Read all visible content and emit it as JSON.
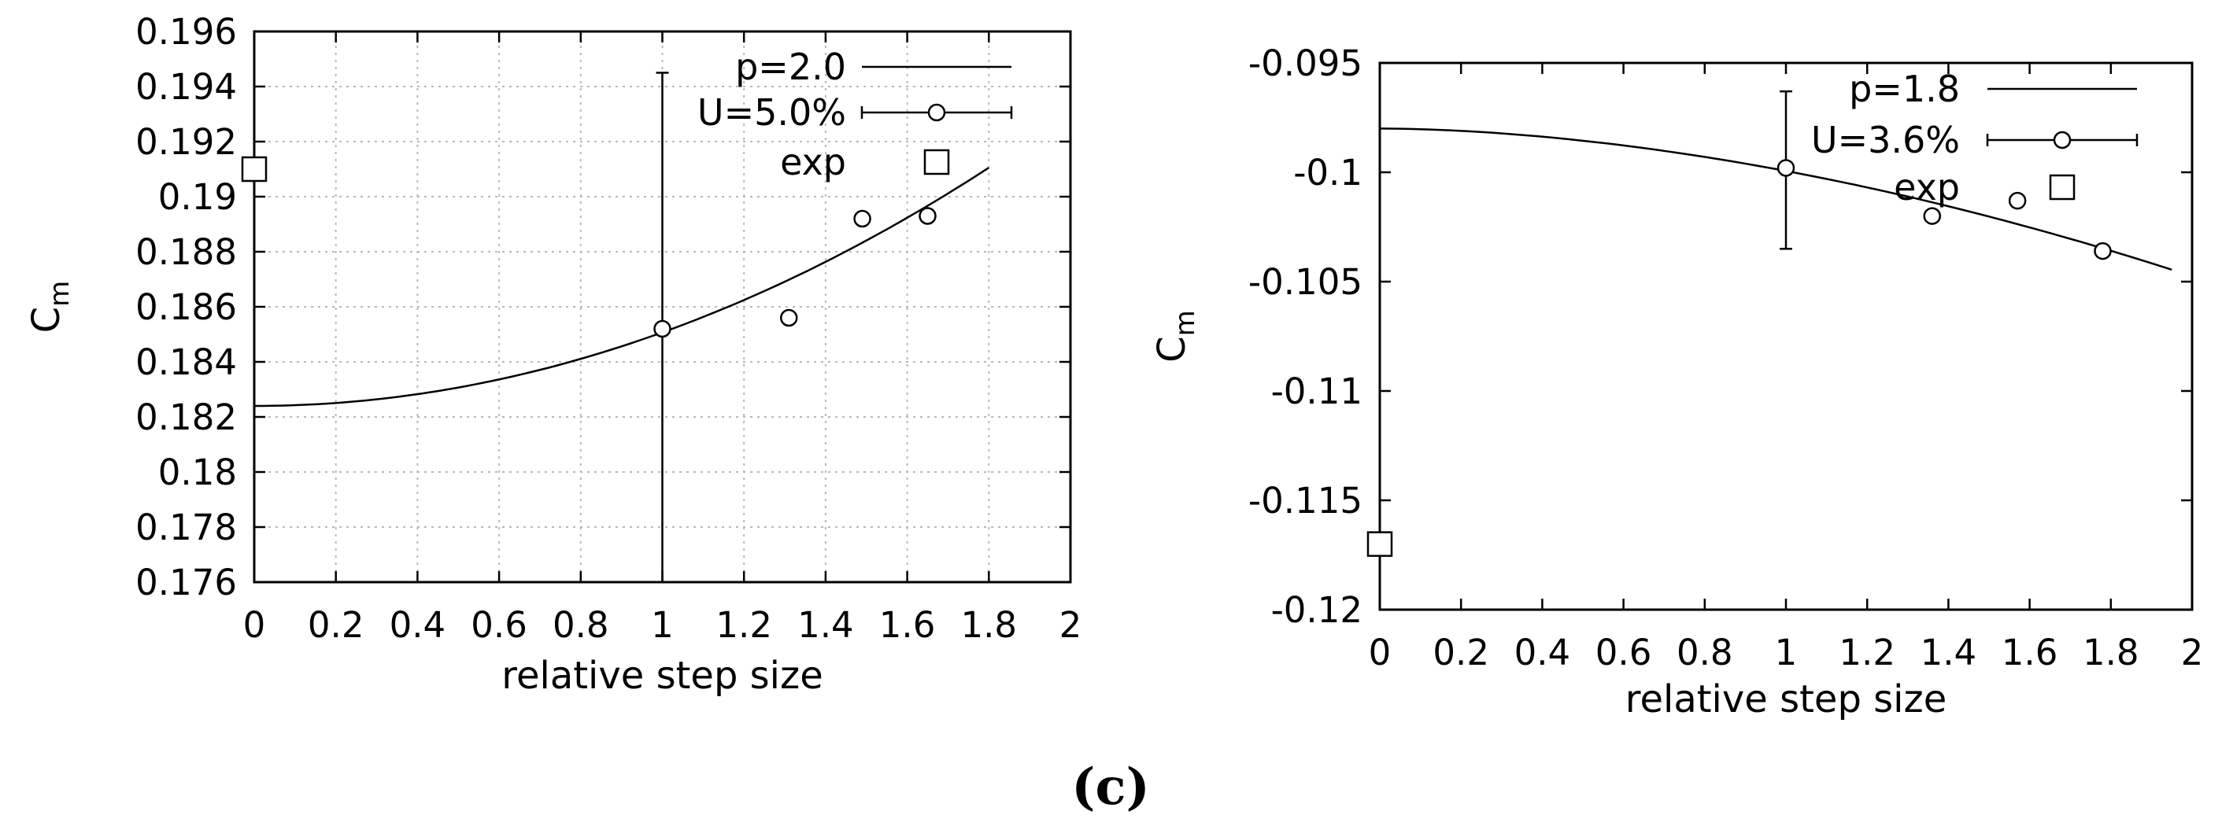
{
  "figure_label": "(c)",
  "chart_data": [
    {
      "type": "line",
      "xlabel": "relative step size",
      "ylabel": "C",
      "ylabel_sub": "m",
      "xlim": [
        0,
        2
      ],
      "ylim": [
        0.176,
        0.196
      ],
      "xticks": [
        0,
        0.2,
        0.4,
        0.6,
        0.8,
        1,
        1.2,
        1.4,
        1.6,
        1.8,
        2
      ],
      "xtick_labels": [
        "0",
        "0.2",
        "0.4",
        "0.6",
        "0.8",
        "1",
        "1.2",
        "1.4",
        "1.6",
        "1.8",
        "2"
      ],
      "yticks": [
        0.176,
        0.178,
        0.18,
        0.182,
        0.184,
        0.186,
        0.188,
        0.19,
        0.192,
        0.194,
        0.196
      ],
      "ytick_labels": [
        "0.176",
        "0.178",
        "0.18",
        "0.182",
        "0.184",
        "0.186",
        "0.188",
        "0.19",
        "0.192",
        "0.194",
        "0.196"
      ],
      "grid": true,
      "legend_position": "top-right",
      "legend": [
        "p=2.0",
        "U=5.0%",
        "exp"
      ],
      "series": [
        {
          "name": "p=2.0",
          "kind": "fit",
          "x_range": [
            0,
            1.8
          ],
          "c0": 0.1824,
          "c1": 0,
          "c2": 0.00267,
          "p": 2.0
        },
        {
          "name": "U=5.0%",
          "kind": "points",
          "x": [
            1.0,
            1.31,
            1.49,
            1.65
          ],
          "y": [
            0.1852,
            0.1856,
            0.1892,
            0.1893
          ],
          "error_bar": {
            "x": 1.0,
            "low": 0.176,
            "high": 0.1945
          }
        },
        {
          "name": "exp",
          "kind": "square",
          "x": [
            0
          ],
          "y": [
            0.191
          ]
        }
      ]
    },
    {
      "type": "line",
      "xlabel": "relative step size",
      "ylabel": "C",
      "ylabel_sub": "m",
      "xlim": [
        0,
        2
      ],
      "ylim": [
        -0.12,
        -0.095
      ],
      "xticks": [
        0,
        0.2,
        0.4,
        0.6,
        0.8,
        1,
        1.2,
        1.4,
        1.6,
        1.8,
        2
      ],
      "xtick_labels": [
        "0",
        "0.2",
        "0.4",
        "0.6",
        "0.8",
        "1",
        "1.2",
        "1.4",
        "1.6",
        "1.8",
        "2"
      ],
      "yticks": [
        -0.12,
        -0.115,
        -0.11,
        -0.105,
        -0.1,
        -0.095
      ],
      "ytick_labels": [
        "-0.12",
        "-0.115",
        "-0.11",
        "-0.105",
        "-0.1",
        "-0.095"
      ],
      "grid": false,
      "legend_position": "top-right",
      "legend": [
        "p=1.8",
        "U=3.6%",
        "exp"
      ],
      "series": [
        {
          "name": "p=1.8",
          "kind": "fit",
          "x_range": [
            0,
            1.95
          ],
          "c0": -0.098,
          "c1": 0,
          "c2": -0.00194,
          "p": 1.8
        },
        {
          "name": "U=3.6%",
          "kind": "points",
          "x": [
            1.0,
            1.36,
            1.57,
            1.78
          ],
          "y": [
            -0.0998,
            -0.102,
            -0.1013,
            -0.1036
          ],
          "error_bar": {
            "x": 1.0,
            "low": -0.1035,
            "high": -0.0963
          }
        },
        {
          "name": "exp",
          "kind": "square",
          "x": [
            0
          ],
          "y": [
            -0.117
          ]
        }
      ]
    }
  ]
}
